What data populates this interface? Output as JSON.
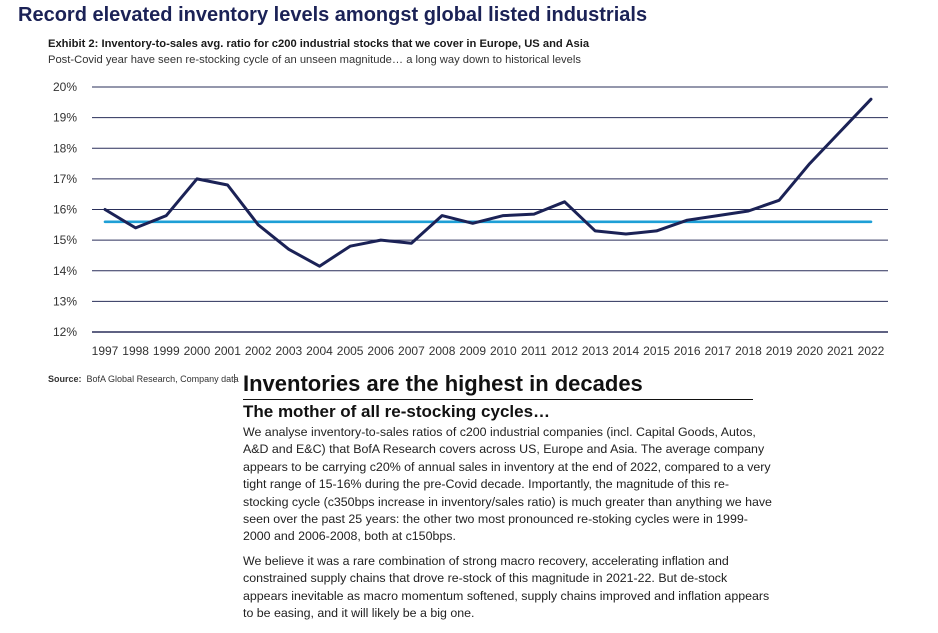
{
  "page": {
    "title": "Record elevated inventory levels amongst global listed industrials",
    "exhibit_title": "Exhibit 2: Inventory-to-sales avg. ratio for c200 industrial stocks that we cover in Europe, US and Asia",
    "exhibit_subtitle": "Post-Covid year have seen re-stocking cycle of an unseen magnitude… a long way down to historical levels",
    "source_label": "Source:",
    "source_text": "BofA Global Research, Company data",
    "headline": "Inventories are the highest in decades",
    "subheadline": "The mother of all re-stocking cycles…",
    "paragraphs": [
      "We analyse inventory-to-sales ratios of c200 industrial companies (incl. Capital Goods, Autos, A&D and E&C) that BofA Research covers across US, Europe and Asia. The average company appears to be carrying c20% of annual sales in inventory at the end of 2022, compared to a very tight range of 15-16% during the pre-Covid decade. Importantly, the magnitude of this re-stocking cycle (c350bps increase in inventory/sales ratio) is much greater than anything we have seen over the past 25 years: the other two most pronounced re-stoking cycles were in 1999-2000 and 2006-2008, both at c150bps.",
      "We believe it was a rare combination of strong macro recovery, accelerating inflation and constrained supply chains that drove re-stock of this magnitude in 2021-22. But de-stock appears inevitable as macro momentum softened, supply chains improved and inflation appears to be easing, and it will likely be a big one."
    ]
  },
  "chart_data": {
    "type": "line",
    "title": "Exhibit 2: Inventory-to-sales avg. ratio for c200 industrial stocks that we cover in Europe, US and Asia",
    "subtitle": "Post-Covid year have seen re-stocking cycle of an unseen magnitude… a long way down to historical levels",
    "x": [
      "1997",
      "1998",
      "1999",
      "2000",
      "2001",
      "2002",
      "2003",
      "2004",
      "2005",
      "2006",
      "2007",
      "2008",
      "2009",
      "2010",
      "2011",
      "2012",
      "2013",
      "2014",
      "2015",
      "2016",
      "2017",
      "2018",
      "2019",
      "2020",
      "2021",
      "2022"
    ],
    "series": [
      {
        "color": "#1b2256",
        "values": [
          16.0,
          15.4,
          15.8,
          17.0,
          16.8,
          15.5,
          14.7,
          14.15,
          14.8,
          15.0,
          14.9,
          15.8,
          15.55,
          15.8,
          15.85,
          16.25,
          15.3,
          15.2,
          15.3,
          15.65,
          15.8,
          15.95,
          16.3,
          17.5,
          18.55,
          19.6
        ]
      },
      {
        "color": "#1e9fd6",
        "values": [
          15.6,
          15.6,
          15.6,
          15.6,
          15.6,
          15.6,
          15.6,
          15.6,
          15.6,
          15.6,
          15.6,
          15.6,
          15.6,
          15.6,
          15.6,
          15.6,
          15.6,
          15.6,
          15.6,
          15.6,
          15.6,
          15.6,
          15.6,
          15.6,
          15.6,
          15.6
        ]
      }
    ],
    "ylim": [
      12,
      20
    ],
    "yticks": [
      12,
      13,
      14,
      15,
      16,
      17,
      18,
      19,
      20
    ],
    "ytick_labels": [
      "12%",
      "13%",
      "14%",
      "15%",
      "16%",
      "17%",
      "18%",
      "19%",
      "20%"
    ],
    "grid": true,
    "legend": "none",
    "gridline_color": "#2a2f5a"
  }
}
